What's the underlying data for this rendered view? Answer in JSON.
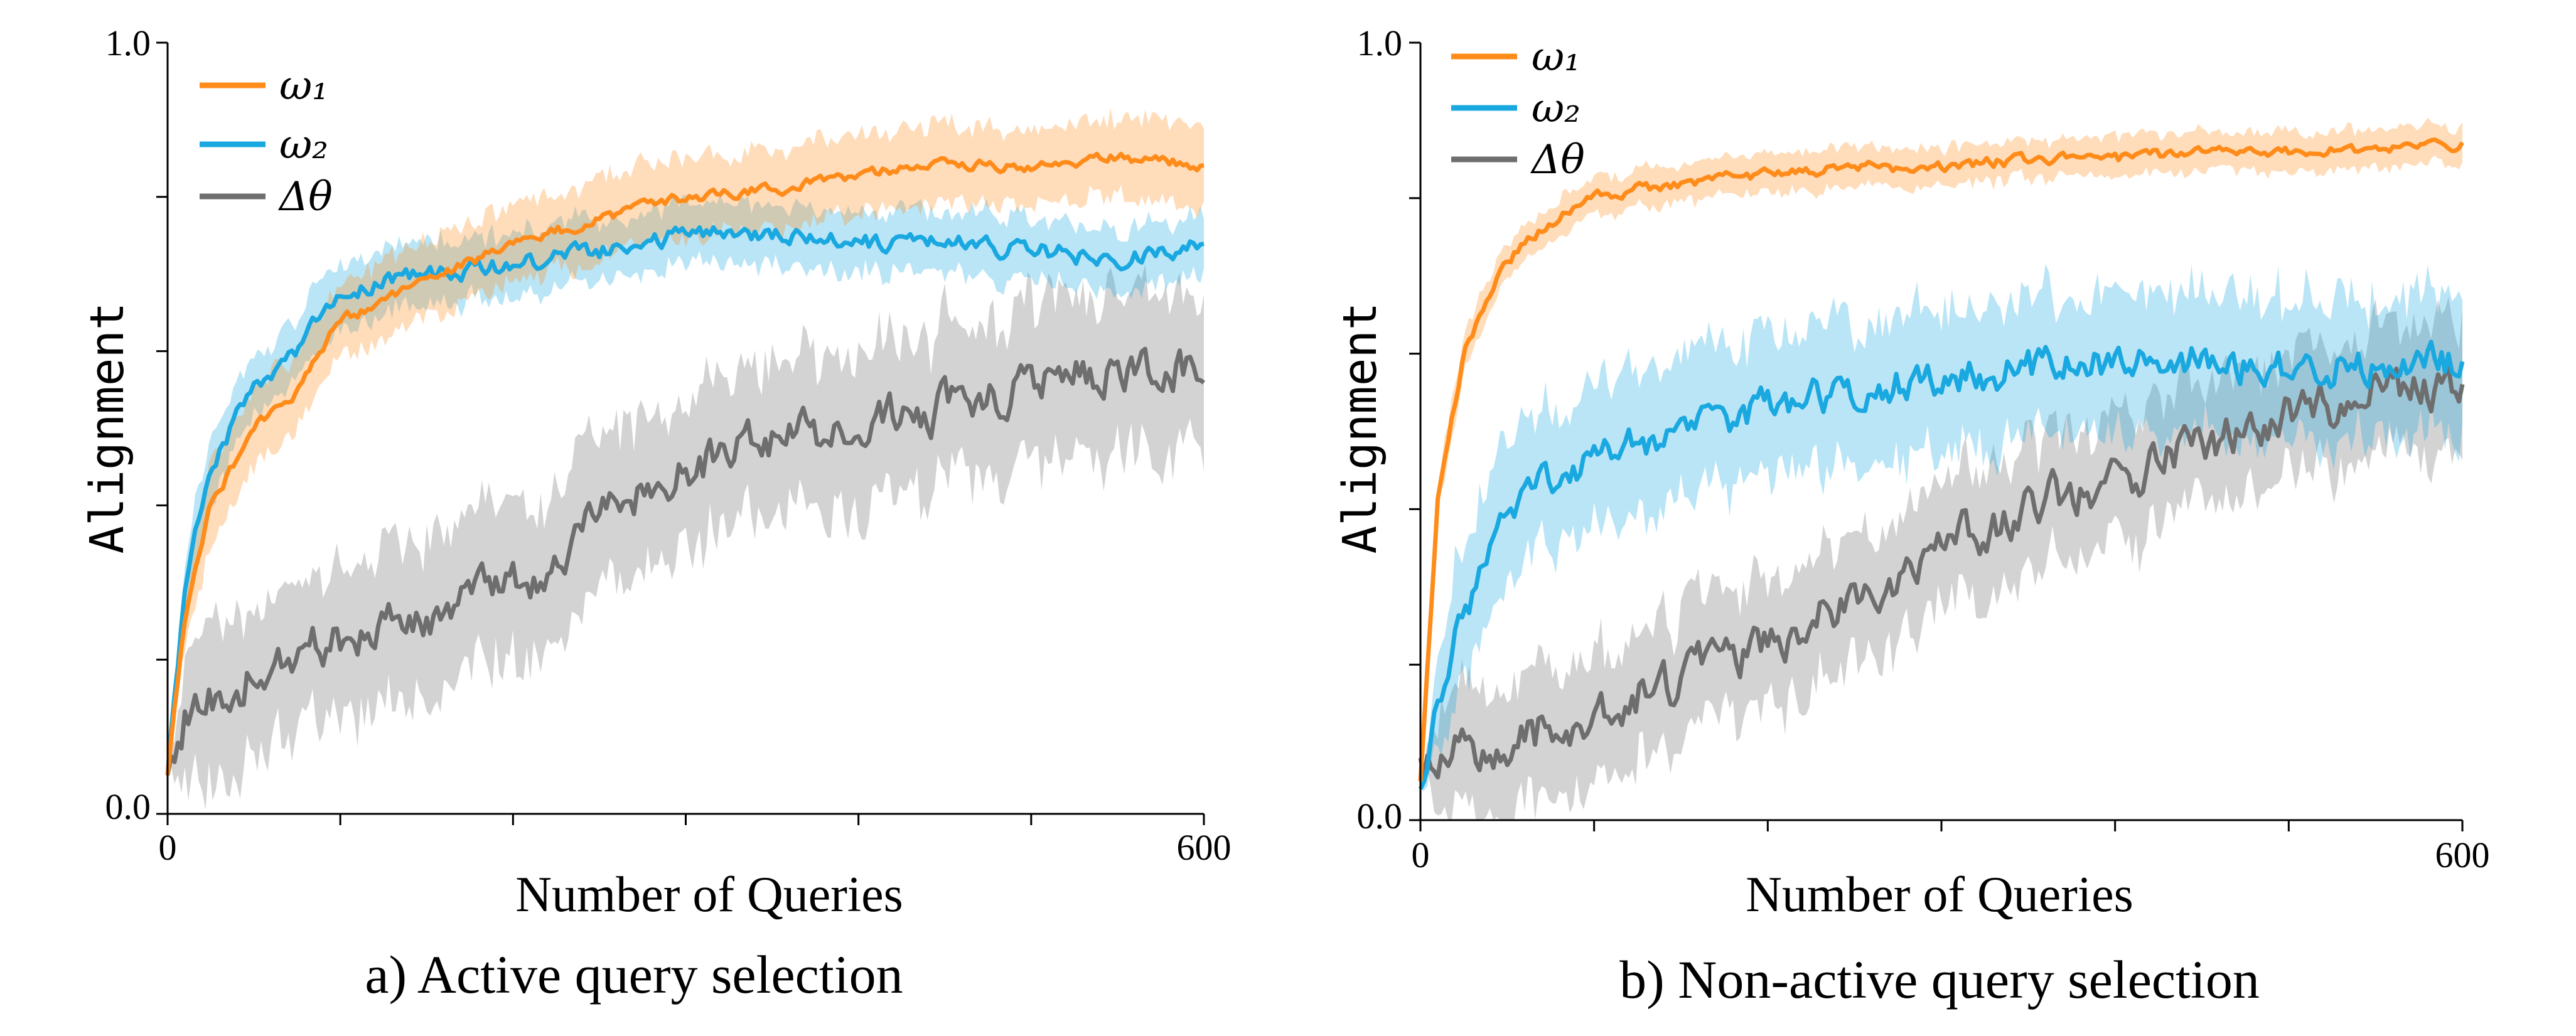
{
  "colors": {
    "omega1": "#ff8c1a",
    "omega2": "#1aa8e0",
    "delta_theta": "#6e6e6e"
  },
  "chart_data": [
    {
      "type": "line",
      "caption": "a) Active query selection",
      "xlabel": "Number of Queries",
      "ylabel": "Alignment",
      "xlim": [
        0,
        600
      ],
      "ylim": [
        0.0,
        1.0
      ],
      "x_tick_labels": [
        "0",
        "600"
      ],
      "y_tick_labels": [
        "0.0",
        "1.0"
      ],
      "legend_position": "top-left",
      "x": [
        0,
        10,
        25,
        50,
        75,
        100,
        150,
        200,
        250,
        300,
        350,
        400,
        450,
        500,
        550,
        600
      ],
      "series": [
        {
          "name": "ω₁",
          "color_key": "omega1",
          "band": 0.05,
          "noise": 0.006,
          "values": [
            0.05,
            0.25,
            0.4,
            0.5,
            0.55,
            0.64,
            0.69,
            0.74,
            0.77,
            0.8,
            0.81,
            0.83,
            0.84,
            0.84,
            0.85,
            0.84
          ]
        },
        {
          "name": "ω₂",
          "color_key": "omega2",
          "band": 0.04,
          "noise": 0.01,
          "values": [
            0.05,
            0.3,
            0.45,
            0.55,
            0.6,
            0.68,
            0.7,
            0.71,
            0.73,
            0.75,
            0.75,
            0.74,
            0.74,
            0.73,
            0.72,
            0.74
          ]
        },
        {
          "name": "Δθ",
          "color_key": "delta_theta",
          "band": 0.1,
          "noise": 0.025,
          "values": [
            0.05,
            0.12,
            0.15,
            0.18,
            0.2,
            0.23,
            0.26,
            0.29,
            0.38,
            0.45,
            0.48,
            0.5,
            0.53,
            0.56,
            0.58,
            0.57
          ]
        }
      ]
    },
    {
      "type": "line",
      "caption": "b) Non-active query selection",
      "xlabel": "Number of Queries",
      "ylabel": "Alignment",
      "xlim": [
        0,
        600
      ],
      "ylim": [
        0.0,
        1.0
      ],
      "x_tick_labels": [
        "0",
        "600"
      ],
      "y_tick_labels": [
        "0.0",
        "1.0"
      ],
      "legend_position": "top-left",
      "x": [
        0,
        10,
        25,
        50,
        75,
        100,
        150,
        200,
        250,
        300,
        350,
        400,
        450,
        500,
        550,
        600
      ],
      "series": [
        {
          "name": "ω₁",
          "color_key": "omega1",
          "band": 0.025,
          "noise": 0.006,
          "values": [
            0.05,
            0.42,
            0.6,
            0.72,
            0.77,
            0.8,
            0.82,
            0.83,
            0.84,
            0.84,
            0.85,
            0.85,
            0.86,
            0.86,
            0.86,
            0.87
          ]
        },
        {
          "name": "ω₂",
          "color_key": "omega2",
          "band": 0.09,
          "noise": 0.02,
          "values": [
            0.04,
            0.16,
            0.26,
            0.38,
            0.44,
            0.47,
            0.5,
            0.53,
            0.55,
            0.57,
            0.58,
            0.59,
            0.59,
            0.58,
            0.59,
            0.59
          ]
        },
        {
          "name": "Δθ",
          "color_key": "delta_theta",
          "band": 0.08,
          "noise": 0.025,
          "values": [
            0.08,
            0.08,
            0.09,
            0.1,
            0.12,
            0.14,
            0.18,
            0.23,
            0.28,
            0.35,
            0.4,
            0.44,
            0.48,
            0.52,
            0.55,
            0.57
          ]
        }
      ]
    }
  ]
}
